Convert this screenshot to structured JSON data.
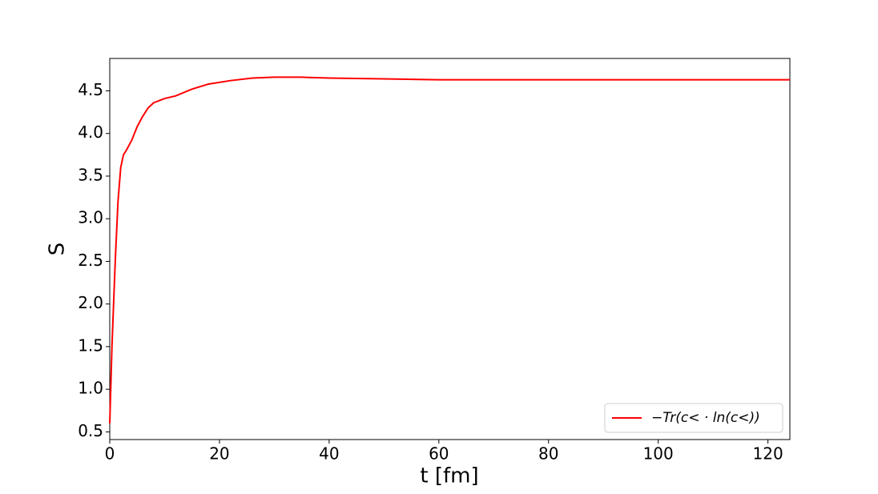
{
  "chart_data": {
    "type": "line",
    "x_label": "t [fm]",
    "y_label": "S",
    "x": [
      0,
      0.4,
      1,
      1.5,
      2,
      2.5,
      3,
      4,
      5,
      6,
      7,
      8,
      10,
      12,
      15,
      18,
      22,
      26,
      30,
      35,
      40,
      50,
      60,
      80,
      100,
      124
    ],
    "series": [
      {
        "name": "−Tr(c< · ln(c<))",
        "color": "#ff0000",
        "values": [
          0.6,
          1.5,
          2.5,
          3.2,
          3.6,
          3.75,
          3.8,
          3.92,
          4.08,
          4.2,
          4.3,
          4.36,
          4.41,
          4.44,
          4.52,
          4.58,
          4.62,
          4.65,
          4.66,
          4.66,
          4.65,
          4.64,
          4.63,
          4.63,
          4.63,
          4.63
        ]
      }
    ],
    "xlim": [
      0,
      124
    ],
    "xticks": [
      0,
      20,
      40,
      60,
      80,
      100,
      120
    ],
    "ylim": [
      0.41,
      4.88
    ],
    "yticks": [
      0.5,
      1.0,
      1.5,
      2.0,
      2.5,
      3.0,
      3.5,
      4.0,
      4.5
    ],
    "legend": "lower right",
    "grid": false
  }
}
